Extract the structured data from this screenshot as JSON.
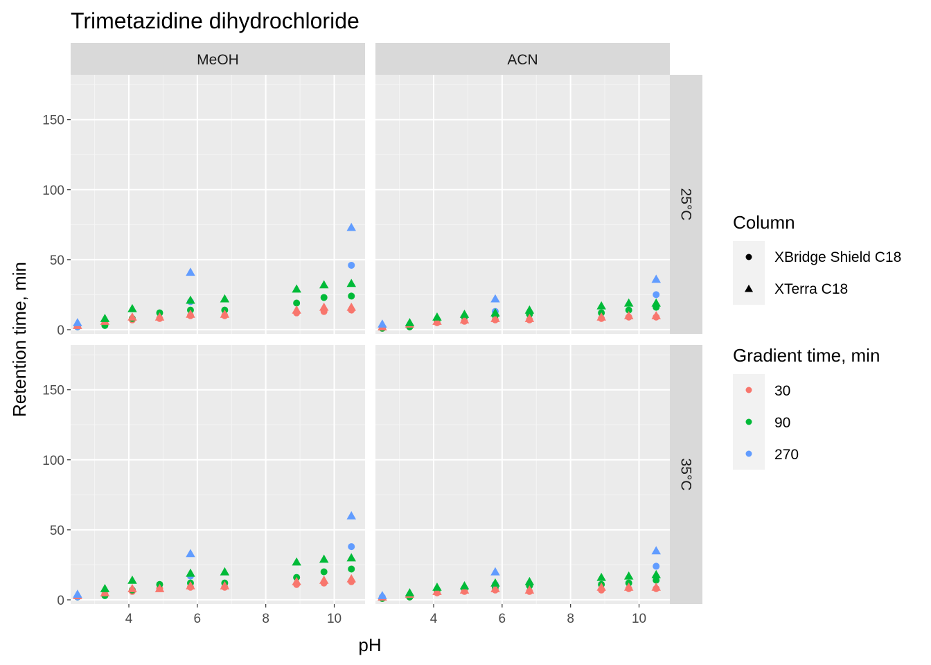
{
  "chart_data": {
    "type": "scatter",
    "title": "Trimetazidine dihydrochloride",
    "xlabel": "pH",
    "ylabel": "Retention time, min",
    "xlim": [
      2.3,
      10.9
    ],
    "ylim": [
      -3,
      182
    ],
    "xticks": [
      4,
      6,
      8,
      10
    ],
    "yticks": [
      0,
      50,
      100,
      150
    ],
    "facet_cols": [
      "MeOH",
      "ACN"
    ],
    "facet_rows": [
      "25°C",
      "35°C"
    ],
    "grid": true,
    "legend_position": "right",
    "legends": {
      "shape": {
        "title": "Column",
        "items": [
          {
            "label": "XBridge Shield C18",
            "shape": "circle"
          },
          {
            "label": "XTerra C18",
            "shape": "triangle"
          }
        ]
      },
      "color": {
        "title": "Gradient time, min",
        "items": [
          {
            "label": "30",
            "color": "#F8766D"
          },
          {
            "label": "90",
            "color": "#00BA38"
          },
          {
            "label": "270",
            "color": "#619CFF"
          }
        ]
      }
    },
    "panels": [
      {
        "col": "MeOH",
        "row": "25°C",
        "series": [
          {
            "column": "XBridge Shield C18",
            "gradient": "30",
            "x": [
              2.5,
              3.3,
              4.1,
              4.9,
              5.8,
              6.8,
              8.9,
              9.7,
              10.5
            ],
            "y": [
              2,
              4,
              7,
              8,
              10,
              10,
              12,
              13,
              14
            ]
          },
          {
            "column": "XBridge Shield C18",
            "gradient": "90",
            "x": [
              2.5,
              3.3,
              4.1,
              4.9,
              5.8,
              6.8,
              8.9,
              9.7,
              10.5
            ],
            "y": [
              2,
              3,
              8,
              12,
              14,
              14,
              19,
              23,
              24
            ]
          },
          {
            "column": "XBridge Shield C18",
            "gradient": "270",
            "x": [
              2.5,
              5.8,
              10.5
            ],
            "y": [
              2,
              20,
              46
            ]
          },
          {
            "column": "XTerra C18",
            "gradient": "30",
            "x": [
              2.5,
              3.3,
              4.1,
              4.9,
              5.8,
              6.8,
              8.9,
              9.7,
              10.5
            ],
            "y": [
              3,
              6,
              9,
              9,
              11,
              11,
              14,
              16,
              16
            ]
          },
          {
            "column": "XTerra C18",
            "gradient": "90",
            "x": [
              3.3,
              4.1,
              5.8,
              6.8,
              8.9,
              9.7,
              10.5
            ],
            "y": [
              8,
              15,
              21,
              22,
              29,
              32,
              33
            ]
          },
          {
            "column": "XTerra C18",
            "gradient": "270",
            "x": [
              2.5,
              5.8,
              10.5
            ],
            "y": [
              5,
              41,
              73
            ]
          }
        ]
      },
      {
        "col": "ACN",
        "row": "25°C",
        "series": [
          {
            "column": "XBridge Shield C18",
            "gradient": "30",
            "x": [
              2.5,
              3.3,
              4.1,
              4.9,
              5.8,
              6.8,
              8.9,
              9.7,
              10.5
            ],
            "y": [
              1,
              2,
              5,
              6,
              7,
              7,
              8,
              9,
              9
            ]
          },
          {
            "column": "XBridge Shield C18",
            "gradient": "90",
            "x": [
              2.5,
              3.3,
              4.1,
              4.9,
              5.8,
              6.8,
              8.9,
              9.7,
              10.5
            ],
            "y": [
              1,
              2,
              7,
              9,
              10,
              11,
              12,
              14,
              16
            ]
          },
          {
            "column": "XBridge Shield C18",
            "gradient": "270",
            "x": [
              2.5,
              5.8,
              10.5
            ],
            "y": [
              2,
              13,
              25
            ]
          },
          {
            "column": "XTerra C18",
            "gradient": "30",
            "x": [
              2.5,
              3.3,
              4.1,
              4.9,
              5.8,
              6.8,
              8.9,
              9.7,
              10.5
            ],
            "y": [
              2,
              4,
              6,
              7,
              8,
              8,
              9,
              10,
              10
            ]
          },
          {
            "column": "XTerra C18",
            "gradient": "90",
            "x": [
              3.3,
              4.1,
              4.9,
              5.8,
              6.8,
              8.9,
              9.7,
              10.5
            ],
            "y": [
              5,
              9,
              11,
              12,
              14,
              17,
              19,
              19
            ]
          },
          {
            "column": "XTerra C18",
            "gradient": "270",
            "x": [
              2.5,
              5.8,
              10.5
            ],
            "y": [
              4,
              22,
              36
            ]
          }
        ]
      },
      {
        "col": "MeOH",
        "row": "35°C",
        "series": [
          {
            "column": "XBridge Shield C18",
            "gradient": "30",
            "x": [
              2.5,
              3.3,
              4.1,
              4.9,
              5.8,
              6.8,
              8.9,
              9.7,
              10.5
            ],
            "y": [
              2,
              4,
              6,
              8,
              9,
              9,
              11,
              12,
              13
            ]
          },
          {
            "column": "XBridge Shield C18",
            "gradient": "90",
            "x": [
              2.5,
              3.3,
              4.1,
              4.9,
              5.8,
              6.8,
              8.9,
              9.7,
              10.5
            ],
            "y": [
              2,
              3,
              7,
              11,
              12,
              12,
              16,
              20,
              22
            ]
          },
          {
            "column": "XBridge Shield C18",
            "gradient": "270",
            "x": [
              2.5,
              5.8,
              10.5
            ],
            "y": [
              2,
              17,
              38
            ]
          },
          {
            "column": "XTerra C18",
            "gradient": "30",
            "x": [
              2.5,
              3.3,
              4.1,
              4.9,
              5.8,
              6.8,
              8.9,
              9.7,
              10.5
            ],
            "y": [
              3,
              5,
              8,
              8,
              10,
              10,
              13,
              14,
              15
            ]
          },
          {
            "column": "XTerra C18",
            "gradient": "90",
            "x": [
              3.3,
              4.1,
              5.8,
              6.8,
              8.9,
              9.7,
              10.5
            ],
            "y": [
              8,
              14,
              19,
              20,
              27,
              29,
              30
            ]
          },
          {
            "column": "XTerra C18",
            "gradient": "270",
            "x": [
              2.5,
              5.8,
              10.5
            ],
            "y": [
              4,
              33,
              60
            ]
          }
        ]
      },
      {
        "col": "ACN",
        "row": "35°C",
        "series": [
          {
            "column": "XBridge Shield C18",
            "gradient": "30",
            "x": [
              2.5,
              3.3,
              4.1,
              4.9,
              5.8,
              6.8,
              8.9,
              9.7,
              10.5
            ],
            "y": [
              1,
              2,
              5,
              6,
              7,
              6,
              7,
              8,
              8
            ]
          },
          {
            "column": "XBridge Shield C18",
            "gradient": "90",
            "x": [
              2.5,
              3.3,
              4.1,
              4.9,
              5.8,
              6.8,
              8.9,
              9.7,
              10.5
            ],
            "y": [
              1,
              2,
              7,
              8,
              9,
              10,
              11,
              12,
              14
            ]
          },
          {
            "column": "XBridge Shield C18",
            "gradient": "270",
            "x": [
              2.5,
              5.8,
              10.5
            ],
            "y": [
              2,
              11,
              24
            ]
          },
          {
            "column": "XTerra C18",
            "gradient": "30",
            "x": [
              2.5,
              3.3,
              4.1,
              4.9,
              5.8,
              6.8,
              8.9,
              9.7,
              10.5
            ],
            "y": [
              2,
              4,
              6,
              7,
              8,
              7,
              9,
              9,
              9
            ]
          },
          {
            "column": "XTerra C18",
            "gradient": "90",
            "x": [
              3.3,
              4.1,
              4.9,
              5.8,
              6.8,
              8.9,
              9.7,
              10.5
            ],
            "y": [
              5,
              9,
              10,
              12,
              13,
              16,
              17,
              18
            ]
          },
          {
            "column": "XTerra C18",
            "gradient": "270",
            "x": [
              2.5,
              5.8,
              10.5
            ],
            "y": [
              3,
              20,
              35
            ]
          }
        ]
      }
    ]
  }
}
